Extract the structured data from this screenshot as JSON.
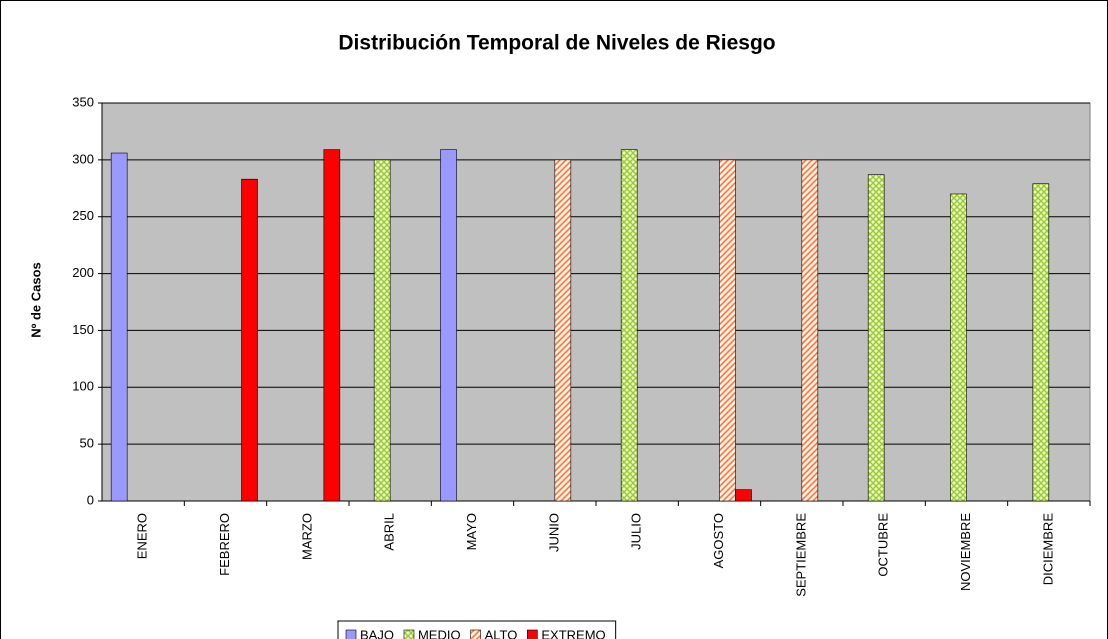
{
  "chart_data": {
    "type": "bar",
    "title": "Distribución Temporal de Niveles de Riesgo",
    "y_label": "Nº de Casos",
    "categories": [
      "ENERO",
      "FEBRERO",
      "MARZO",
      "ABRIL",
      "MAYO",
      "JUNIO",
      "JULIO",
      "AGOSTO",
      "SEPTIEMBRE",
      "OCTUBRE",
      "NOVIEMBRE",
      "DICIEMBRE"
    ],
    "series": [
      {
        "name": "BAJO",
        "color": "#9999ff",
        "values": [
          306,
          null,
          null,
          null,
          309,
          null,
          null,
          null,
          null,
          null,
          null,
          null
        ]
      },
      {
        "name": "MEDIO",
        "color": "#99cc33",
        "values": [
          null,
          null,
          null,
          300,
          null,
          null,
          309,
          null,
          null,
          287,
          270,
          279
        ]
      },
      {
        "name": "ALTO",
        "color": "#ff7733",
        "values": [
          null,
          null,
          null,
          null,
          null,
          300,
          null,
          300,
          300,
          null,
          null,
          null
        ]
      },
      {
        "name": "EXTREMO",
        "color": "#ff0000",
        "values": [
          null,
          283,
          309,
          null,
          null,
          null,
          null,
          10,
          null,
          null,
          null,
          null
        ]
      }
    ],
    "ylim": [
      0,
      350
    ],
    "yticks": [
      0,
      50,
      100,
      150,
      200,
      250,
      300,
      350
    ],
    "grid": true,
    "legend": "bottom"
  }
}
